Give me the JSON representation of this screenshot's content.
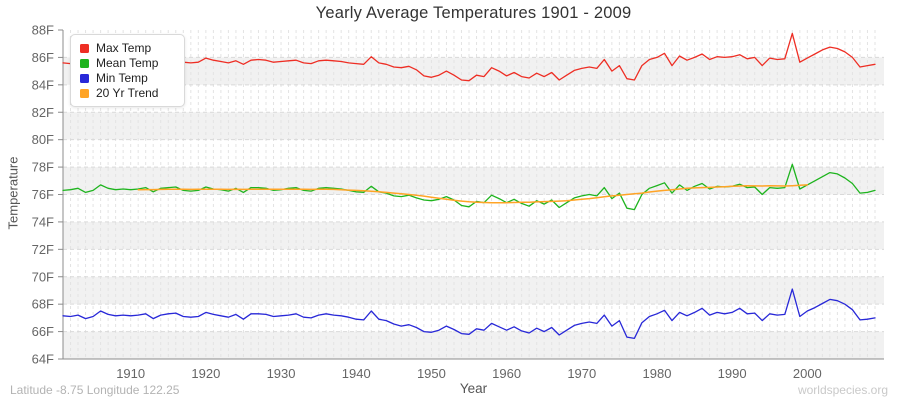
{
  "chart_data": {
    "type": "line",
    "title": "Yearly Average Temperatures 1901 - 2009",
    "xlabel": "Year",
    "ylabel": "Temperature",
    "x_start": 1901,
    "x_end": 2009,
    "ylim": [
      64,
      88
    ],
    "y_tick_step": 2,
    "y_tick_suffix": "F",
    "x_ticks": [
      1910,
      1920,
      1930,
      1940,
      1950,
      1960,
      1970,
      1980,
      1990,
      2000
    ],
    "grid": true,
    "legend_position": "top-left",
    "plot_colors": {
      "band": "#f1f1f1",
      "v_grid": "#e3e3e3",
      "h_grid": "#d9d9d9",
      "axis": "#8c8c8c",
      "tick_label": "#666666"
    },
    "series": [
      {
        "name": "Max Temp",
        "color": "#ee2e24",
        "x_first": 1901,
        "values": [
          85.6,
          85.55,
          85.65,
          85.45,
          85.6,
          85.85,
          85.7,
          85.6,
          85.65,
          85.6,
          85.65,
          85.75,
          85.5,
          85.7,
          85.8,
          85.9,
          85.65,
          85.6,
          85.65,
          85.95,
          85.8,
          85.7,
          85.6,
          85.75,
          85.5,
          85.8,
          85.85,
          85.8,
          85.65,
          85.7,
          85.75,
          85.8,
          85.6,
          85.55,
          85.75,
          85.8,
          85.75,
          85.7,
          85.6,
          85.55,
          85.5,
          86.05,
          85.6,
          85.5,
          85.3,
          85.25,
          85.35,
          85.1,
          84.65,
          84.55,
          84.7,
          85.0,
          84.7,
          84.35,
          84.3,
          84.7,
          84.6,
          85.25,
          85.0,
          84.65,
          84.9,
          84.6,
          84.5,
          84.85,
          84.6,
          84.9,
          84.35,
          84.7,
          85.05,
          85.2,
          85.3,
          85.2,
          85.85,
          85.0,
          85.4,
          84.45,
          84.35,
          85.4,
          85.85,
          86.0,
          86.3,
          85.4,
          86.1,
          85.8,
          86.0,
          86.25,
          85.85,
          86.05,
          86.0,
          86.05,
          86.2,
          85.9,
          86.0,
          85.4,
          85.95,
          85.85,
          85.9,
          87.75,
          85.65,
          85.95,
          86.25,
          86.55,
          86.75,
          86.65,
          86.4,
          86.0,
          85.3,
          85.4,
          85.5
        ]
      },
      {
        "name": "Mean Temp",
        "color": "#1eb41e",
        "x_first": 1901,
        "values": [
          76.3,
          76.35,
          76.45,
          76.15,
          76.3,
          76.7,
          76.45,
          76.35,
          76.4,
          76.35,
          76.4,
          76.5,
          76.2,
          76.45,
          76.5,
          76.55,
          76.3,
          76.25,
          76.3,
          76.55,
          76.4,
          76.35,
          76.25,
          76.45,
          76.15,
          76.5,
          76.5,
          76.45,
          76.3,
          76.35,
          76.45,
          76.5,
          76.3,
          76.25,
          76.45,
          76.5,
          76.45,
          76.4,
          76.3,
          76.2,
          76.15,
          76.6,
          76.2,
          76.1,
          75.9,
          75.85,
          75.95,
          75.75,
          75.6,
          75.55,
          75.65,
          75.85,
          75.6,
          75.2,
          75.1,
          75.5,
          75.4,
          75.95,
          75.7,
          75.4,
          75.65,
          75.35,
          75.15,
          75.55,
          75.3,
          75.6,
          75.05,
          75.4,
          75.75,
          75.9,
          76.0,
          75.9,
          76.5,
          75.7,
          76.1,
          75.0,
          74.9,
          76.0,
          76.45,
          76.65,
          76.85,
          76.1,
          76.7,
          76.3,
          76.6,
          76.8,
          76.4,
          76.6,
          76.55,
          76.6,
          76.75,
          76.5,
          76.55,
          76.0,
          76.5,
          76.45,
          76.5,
          78.2,
          76.4,
          76.7,
          77.0,
          77.3,
          77.6,
          77.5,
          77.2,
          76.8,
          76.1,
          76.15,
          76.3
        ]
      },
      {
        "name": "Min Temp",
        "color": "#2828d8",
        "x_first": 1901,
        "values": [
          67.15,
          67.1,
          67.2,
          66.95,
          67.1,
          67.5,
          67.25,
          67.15,
          67.2,
          67.15,
          67.2,
          67.3,
          66.95,
          67.2,
          67.3,
          67.35,
          67.1,
          67.05,
          67.1,
          67.4,
          67.25,
          67.15,
          67.05,
          67.25,
          66.9,
          67.3,
          67.3,
          67.25,
          67.1,
          67.15,
          67.2,
          67.3,
          67.05,
          67.0,
          67.2,
          67.3,
          67.2,
          67.15,
          67.05,
          66.9,
          66.85,
          67.5,
          66.9,
          66.8,
          66.55,
          66.4,
          66.5,
          66.3,
          66.0,
          65.95,
          66.1,
          66.4,
          66.15,
          65.85,
          65.8,
          66.2,
          66.1,
          66.6,
          66.35,
          66.1,
          66.35,
          66.05,
          65.9,
          66.25,
          66.0,
          66.3,
          65.75,
          66.1,
          66.45,
          66.6,
          66.7,
          66.6,
          67.2,
          66.4,
          66.8,
          65.6,
          65.5,
          66.65,
          67.1,
          67.3,
          67.55,
          66.8,
          67.4,
          67.15,
          67.4,
          67.7,
          67.2,
          67.4,
          67.3,
          67.4,
          67.7,
          67.3,
          67.35,
          66.8,
          67.3,
          67.2,
          67.25,
          69.1,
          67.1,
          67.5,
          67.75,
          68.05,
          68.35,
          68.25,
          68.0,
          67.6,
          66.85,
          66.9,
          67.0
        ]
      },
      {
        "name": "20 Yr Trend",
        "color": "#ffa426",
        "x_first": 1911,
        "values": [
          76.35,
          76.36,
          76.36,
          76.37,
          76.38,
          76.38,
          76.38,
          76.37,
          76.38,
          76.39,
          76.38,
          76.38,
          76.37,
          76.38,
          76.37,
          76.38,
          76.39,
          76.38,
          76.38,
          76.38,
          76.39,
          76.39,
          76.38,
          76.37,
          76.38,
          76.38,
          76.37,
          76.35,
          76.32,
          76.3,
          76.27,
          76.24,
          76.2,
          76.15,
          76.1,
          76.05,
          76.0,
          75.95,
          75.88,
          75.8,
          75.72,
          75.65,
          75.58,
          75.52,
          75.47,
          75.44,
          75.42,
          75.4,
          75.4,
          75.4,
          75.42,
          75.43,
          75.44,
          75.46,
          75.48,
          75.5,
          75.52,
          75.55,
          75.6,
          75.65,
          75.7,
          75.77,
          75.84,
          75.9,
          75.95,
          76.0,
          76.05,
          76.1,
          76.18,
          76.25,
          76.3,
          76.35,
          76.4,
          76.45,
          76.48,
          76.5,
          76.52,
          76.55,
          76.57,
          76.6,
          76.62,
          76.64,
          76.63,
          76.62,
          76.64,
          76.63,
          76.62,
          76.64,
          76.67,
          76.7
        ]
      }
    ]
  },
  "footer": {
    "left": "Latitude -8.75 Longitude 122.25",
    "right": "worldspecies.org"
  }
}
